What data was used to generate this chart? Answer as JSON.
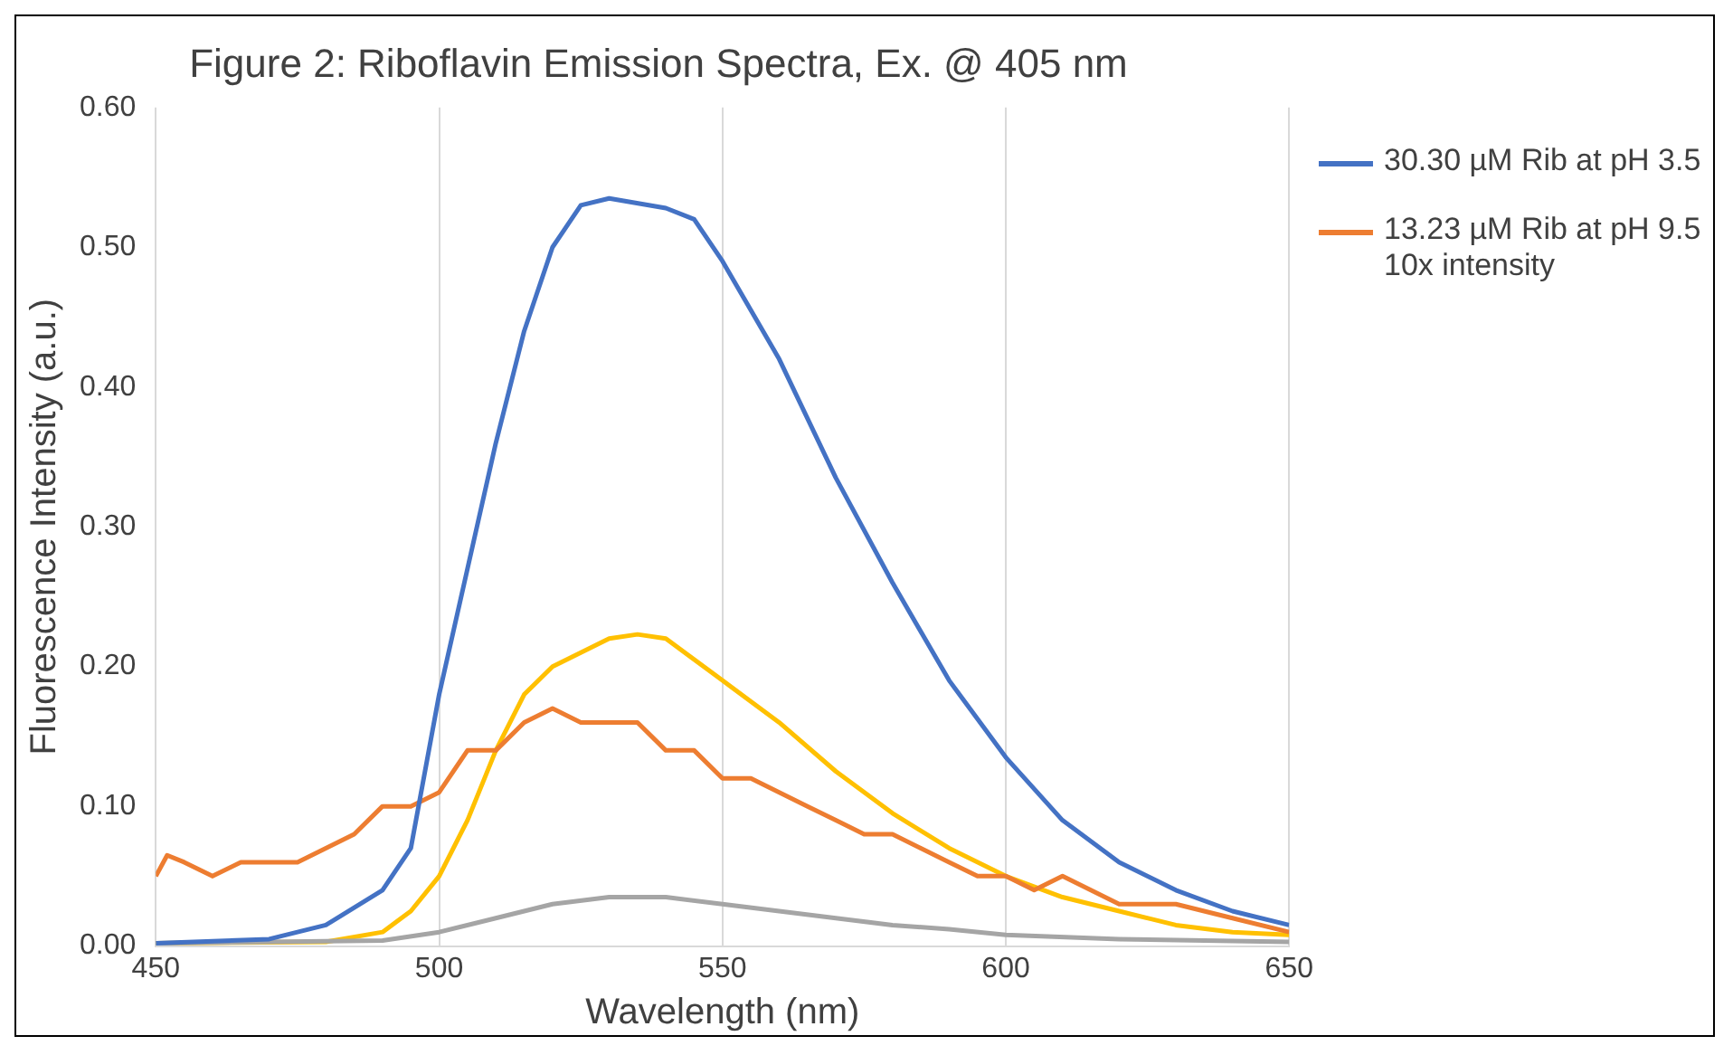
{
  "chart_data": {
    "type": "line",
    "title": "Figure 2: Riboflavin Emission Spectra, Ex. @ 405 nm",
    "xlabel": "Wavelength (nm)",
    "ylabel": "Fluorescence Intensity (a.u.)",
    "xlim": [
      450,
      650
    ],
    "xticks": [
      450,
      500,
      550,
      600,
      650
    ],
    "ylim": [
      0,
      0.6
    ],
    "yticks": [
      {
        "value": 0,
        "label": "0.00"
      },
      {
        "value": 0.1,
        "label": "0.10"
      },
      {
        "value": 0.2,
        "label": "0.20"
      },
      {
        "value": 0.3,
        "label": "0.30"
      },
      {
        "value": 0.4,
        "label": "0.40"
      },
      {
        "value": 0.5,
        "label": "0.50"
      },
      {
        "value": 0.6,
        "label": "0.60"
      }
    ],
    "grid": "x",
    "legend": "right",
    "marker": "none",
    "line_style": "solid",
    "series": [
      {
        "name": "30.30 µM Rib at pH 3.5",
        "color": "#4472c4",
        "x": [
          450,
          470,
          480,
          490,
          495,
          500,
          505,
          510,
          515,
          520,
          525,
          530,
          540,
          545,
          550,
          560,
          570,
          580,
          590,
          600,
          610,
          620,
          630,
          640,
          650
        ],
        "values": [
          0.002,
          0.005,
          0.015,
          0.04,
          0.07,
          0.18,
          0.27,
          0.36,
          0.44,
          0.5,
          0.53,
          0.535,
          0.528,
          0.52,
          0.49,
          0.42,
          0.335,
          0.26,
          0.19,
          0.135,
          0.09,
          0.06,
          0.04,
          0.025,
          0.015
        ]
      },
      {
        "name": "13.23 µM Rib at pH 9.5 10x intensity",
        "color": "#ed7d31",
        "x": [
          450,
          452,
          455,
          460,
          465,
          470,
          475,
          480,
          485,
          490,
          495,
          500,
          505,
          510,
          515,
          520,
          525,
          530,
          535,
          540,
          545,
          550,
          555,
          560,
          565,
          570,
          575,
          580,
          585,
          590,
          595,
          600,
          605,
          610,
          615,
          620,
          625,
          630,
          640,
          650
        ],
        "values": [
          0.05,
          0.065,
          0.06,
          0.05,
          0.06,
          0.06,
          0.06,
          0.07,
          0.08,
          0.1,
          0.1,
          0.11,
          0.14,
          0.14,
          0.16,
          0.17,
          0.16,
          0.16,
          0.16,
          0.14,
          0.14,
          0.12,
          0.12,
          0.11,
          0.1,
          0.09,
          0.08,
          0.08,
          0.07,
          0.06,
          0.05,
          0.05,
          0.04,
          0.05,
          0.04,
          0.03,
          0.03,
          0.03,
          0.02,
          0.01
        ]
      },
      {
        "color": "#a5a5a5",
        "x": [
          450,
          490,
          500,
          510,
          520,
          530,
          540,
          550,
          560,
          570,
          580,
          590,
          600,
          620,
          650
        ],
        "values": [
          0.002,
          0.004,
          0.01,
          0.02,
          0.03,
          0.035,
          0.035,
          0.03,
          0.025,
          0.02,
          0.015,
          0.012,
          0.008,
          0.005,
          0.003
        ]
      },
      {
        "color": "#ffc000",
        "x": [
          450,
          480,
          490,
          495,
          500,
          505,
          510,
          515,
          520,
          530,
          535,
          540,
          550,
          560,
          570,
          580,
          590,
          600,
          610,
          620,
          630,
          640,
          650
        ],
        "values": [
          0.002,
          0.003,
          0.01,
          0.025,
          0.05,
          0.09,
          0.14,
          0.18,
          0.2,
          0.22,
          0.223,
          0.22,
          0.19,
          0.16,
          0.125,
          0.095,
          0.07,
          0.05,
          0.035,
          0.025,
          0.015,
          0.01,
          0.008
        ]
      }
    ]
  }
}
